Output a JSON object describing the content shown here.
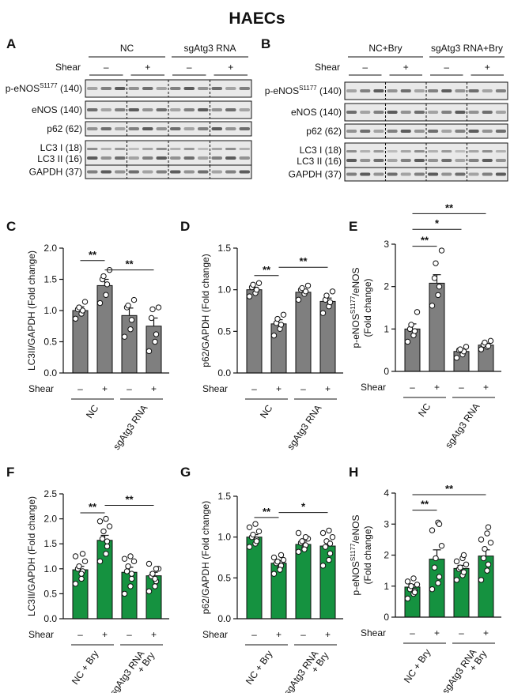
{
  "title": "HAECs",
  "blots": [
    {
      "letter": "A",
      "groups": [
        "NC",
        "sgAtg3 RNA"
      ],
      "shear_label": "Shear",
      "shear": [
        "–",
        "+",
        "–",
        "+"
      ],
      "rows": [
        {
          "main": "p-eNOS",
          "sup": "S1177",
          "kda": " (140)"
        },
        {
          "main": "eNOS (140)",
          "sup": "",
          "kda": ""
        },
        {
          "main": "p62 (62)",
          "sup": "",
          "kda": ""
        },
        {
          "main": "LC3 I (18)",
          "sub2": "LC3 II (16)"
        },
        {
          "main": "GAPDH (37)",
          "sup": "",
          "kda": ""
        }
      ]
    },
    {
      "letter": "B",
      "groups": [
        "NC+Bry",
        "sgAtg3 RNA+Bry"
      ],
      "shear_label": "Shear",
      "shear": [
        "–",
        "+",
        "–",
        "+"
      ],
      "rows": [
        {
          "main": "p-eNOS",
          "sup": "S1177",
          "kda": " (140)"
        },
        {
          "main": "eNOS (140)",
          "sup": "",
          "kda": ""
        },
        {
          "main": "p62 (62)",
          "sup": "",
          "kda": ""
        },
        {
          "main": "LC3 I (18)",
          "sub2": "LC3 II (16)"
        },
        {
          "main": "GAPDH (37)",
          "sup": "",
          "kda": ""
        }
      ]
    }
  ],
  "chart_data": [
    {
      "letter": "C",
      "type": "bar",
      "color": "#7f7f7f",
      "ylabel": [
        "LC3II/GAPDH (Fold change)"
      ],
      "ylim": [
        0,
        2.0
      ],
      "yticks": [
        "0.0",
        "0.5",
        "1.0",
        "1.5",
        "2.0"
      ],
      "shear_label": "Shear",
      "shear": [
        "–",
        "+",
        "–",
        "+"
      ],
      "groups": [
        "NC",
        "sgAtg3 RNA"
      ],
      "values": [
        1.0,
        1.4,
        0.92,
        0.75
      ],
      "errors": [
        0.06,
        0.1,
        0.12,
        0.13
      ],
      "points": [
        [
          0.87,
          0.95,
          1.0,
          1.02,
          1.05,
          1.14
        ],
        [
          1.12,
          1.25,
          1.42,
          1.5,
          1.55,
          1.65
        ],
        [
          0.58,
          0.7,
          0.85,
          1.05,
          1.08,
          1.17
        ],
        [
          0.35,
          0.5,
          0.62,
          0.88,
          1.02,
          1.05
        ]
      ],
      "sig": [
        {
          "a": 0,
          "b": 1,
          "y": 1.8,
          "label": "**"
        },
        {
          "a": 1,
          "b": 3,
          "y": 1.65,
          "label": "**"
        }
      ]
    },
    {
      "letter": "D",
      "type": "bar",
      "color": "#7f7f7f",
      "ylabel": [
        "p62/GAPDH (Fold change)"
      ],
      "ylim": [
        0,
        1.5
      ],
      "yticks": [
        "0.0",
        "0.5",
        "1.0",
        "1.5"
      ],
      "shear_label": "Shear",
      "shear": [
        "–",
        "+",
        "–",
        "+"
      ],
      "groups": [
        "NC",
        "sgAtg3 RNA"
      ],
      "values": [
        1.0,
        0.59,
        0.97,
        0.86
      ],
      "errors": [
        0.03,
        0.05,
        0.03,
        0.04
      ],
      "points": [
        [
          0.92,
          0.96,
          1.0,
          1.03,
          1.06,
          1.08
        ],
        [
          0.45,
          0.53,
          0.58,
          0.6,
          0.65,
          0.7
        ],
        [
          0.88,
          0.95,
          0.98,
          1.0,
          1.02,
          1.05
        ],
        [
          0.72,
          0.8,
          0.85,
          0.88,
          0.93,
          0.98
        ]
      ],
      "sig": [
        {
          "a": 0,
          "b": 1,
          "y": 1.17,
          "label": "**"
        },
        {
          "a": 1,
          "b": 3,
          "y": 1.27,
          "label": "**"
        }
      ]
    },
    {
      "letter": "E",
      "type": "bar",
      "color": "#7f7f7f",
      "ylabel": [
        "p-eNOS/eNOS",
        "(Fold change)"
      ],
      "ylabel_sup": "S1177",
      "ylim": [
        0,
        3
      ],
      "yticks": [
        "0",
        "1",
        "2",
        "3"
      ],
      "shear_label": "Shear",
      "shear": [
        "–",
        "+",
        "–",
        "+"
      ],
      "groups": [
        "NC",
        "sgAtg3 RNA"
      ],
      "values": [
        1.0,
        2.08,
        0.47,
        0.62
      ],
      "errors": [
        0.12,
        0.2,
        0.05,
        0.04
      ],
      "points": [
        [
          0.7,
          0.85,
          0.95,
          1.0,
          1.1,
          1.4
        ],
        [
          1.55,
          1.8,
          2.0,
          2.2,
          2.55,
          2.85
        ],
        [
          0.32,
          0.4,
          0.47,
          0.5,
          0.52,
          0.58
        ],
        [
          0.52,
          0.58,
          0.6,
          0.63,
          0.68,
          0.72
        ]
      ],
      "sig": [
        {
          "a": 0,
          "b": 1,
          "y": 2.95,
          "label": "**"
        },
        {
          "a": 0,
          "b": 2,
          "y": 3.35,
          "label": "*"
        },
        {
          "a": 0,
          "b": 3,
          "y": 3.72,
          "label": "**"
        }
      ]
    },
    {
      "letter": "F",
      "type": "bar",
      "color": "#159240",
      "ylabel": [
        "LC3II/GAPDH (Fold change)"
      ],
      "ylim": [
        0,
        2.5
      ],
      "yticks": [
        "0.0",
        "0.5",
        "1.0",
        "1.5",
        "2.0",
        "2.5"
      ],
      "shear_label": "Shear",
      "shear": [
        "–",
        "+",
        "–",
        "+"
      ],
      "groups": [
        "NC + Bry",
        "sgAtg3 RNA",
        "+ Bry"
      ],
      "values": [
        0.98,
        1.57,
        0.93,
        0.86
      ],
      "errors": [
        0.07,
        0.1,
        0.1,
        0.07
      ],
      "points": [
        [
          0.7,
          0.8,
          0.95,
          1.0,
          1.05,
          1.15,
          1.25,
          0.9,
          1.3
        ],
        [
          1.15,
          1.3,
          1.45,
          1.6,
          1.75,
          1.85,
          1.95,
          2.0,
          1.55
        ],
        [
          0.5,
          0.65,
          0.8,
          0.95,
          1.05,
          1.15,
          1.2,
          1.25,
          0.9
        ],
        [
          0.55,
          0.65,
          0.75,
          0.85,
          0.9,
          1.0,
          1.1,
          0.8,
          1.0
        ]
      ],
      "sig": [
        {
          "a": 0,
          "b": 1,
          "y": 2.12,
          "label": "**"
        },
        {
          "a": 1,
          "b": 3,
          "y": 2.27,
          "label": "**"
        }
      ]
    },
    {
      "letter": "G",
      "type": "bar",
      "color": "#159240",
      "ylabel": [
        "p62/GAPDH (Fold change)"
      ],
      "ylim": [
        0,
        1.5
      ],
      "yticks": [
        "0.0",
        "0.5",
        "1.0",
        "1.5"
      ],
      "shear_label": "Shear",
      "shear": [
        "–",
        "+",
        "–",
        "+"
      ],
      "groups": [
        "NC + Bry",
        "sgAtg3 RNA",
        "+ Bry"
      ],
      "values": [
        1.0,
        0.68,
        0.91,
        0.89
      ],
      "errors": [
        0.03,
        0.03,
        0.04,
        0.06
      ],
      "points": [
        [
          0.88,
          0.92,
          0.97,
          1.0,
          1.03,
          1.07,
          1.12,
          1.16,
          0.95
        ],
        [
          0.55,
          0.62,
          0.65,
          0.68,
          0.7,
          0.72,
          0.75,
          0.6,
          0.78
        ],
        [
          0.82,
          0.87,
          0.9,
          0.93,
          0.95,
          0.98,
          1.05,
          0.85,
          1.0
        ],
        [
          0.65,
          0.72,
          0.8,
          0.88,
          0.95,
          1.0,
          1.05,
          1.08,
          0.92
        ]
      ],
      "sig": [
        {
          "a": 0,
          "b": 1,
          "y": 1.24,
          "label": "**"
        },
        {
          "a": 1,
          "b": 3,
          "y": 1.3,
          "label": "*"
        }
      ]
    },
    {
      "letter": "H",
      "type": "bar",
      "color": "#159240",
      "ylabel": [
        "p-eNOS/eNOS",
        "(Fold change)"
      ],
      "ylabel_sup": "S1177",
      "ylim": [
        0,
        4
      ],
      "yticks": [
        "0",
        "1",
        "2",
        "3",
        "4"
      ],
      "shear_label": "Shear",
      "shear": [
        "–",
        "+",
        "–",
        "+"
      ],
      "groups": [
        "NC + Bry",
        "sgAtg3 RNA",
        "+ Bry"
      ],
      "values": [
        0.97,
        1.87,
        1.57,
        1.97
      ],
      "errors": [
        0.08,
        0.3,
        0.1,
        0.2
      ],
      "points": [
        [
          0.6,
          0.75,
          0.85,
          0.9,
          1.0,
          1.05,
          1.15,
          1.25,
          0.8
        ],
        [
          0.9,
          1.1,
          1.3,
          1.6,
          1.9,
          2.3,
          2.8,
          3.05,
          3.0
        ],
        [
          1.2,
          1.35,
          1.45,
          1.55,
          1.6,
          1.7,
          1.8,
          1.9,
          2.0
        ],
        [
          1.2,
          1.5,
          1.7,
          1.9,
          2.2,
          2.4,
          2.5,
          2.7,
          2.9
        ]
      ],
      "sig": [
        {
          "a": 0,
          "b": 1,
          "y": 3.45,
          "label": "**"
        },
        {
          "a": 0,
          "b": 3,
          "y": 3.95,
          "label": "**"
        }
      ]
    }
  ]
}
